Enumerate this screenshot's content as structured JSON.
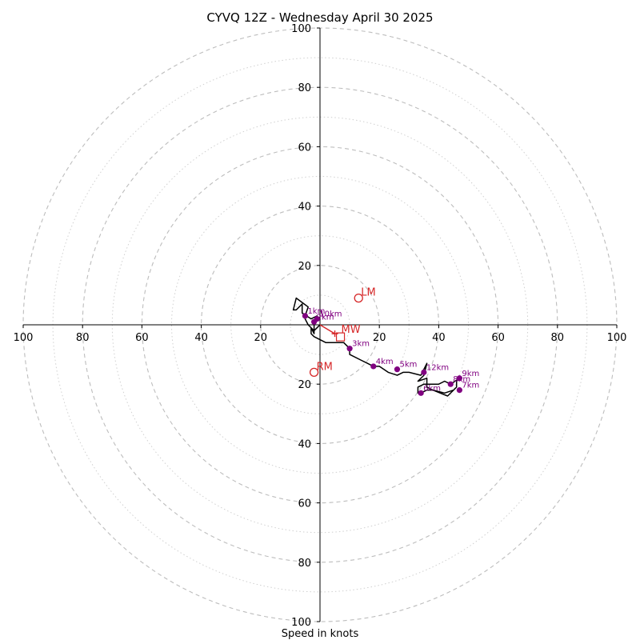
{
  "chart_data": {
    "type": "scatter",
    "title": "CYVQ 12Z - Wednesday April 30 2025",
    "xlabel": "Speed in knots",
    "ylabel": "",
    "xlim": [
      -100,
      100
    ],
    "ylim": [
      -100,
      100
    ],
    "polar_rings_major": [
      20,
      40,
      60,
      80,
      100
    ],
    "polar_rings_minor": [
      10,
      30,
      50,
      70,
      90
    ],
    "x_tick_labels": [
      "100",
      "80",
      "60",
      "40",
      "20",
      "",
      "20",
      "40",
      "60",
      "80",
      "100"
    ],
    "x_tick_values": [
      -100,
      -80,
      -60,
      -40,
      -20,
      0,
      20,
      40,
      60,
      80,
      100
    ],
    "y_tick_labels": [
      "100",
      "80",
      "60",
      "40",
      "20",
      "",
      "20",
      "40",
      "60",
      "80",
      "100"
    ],
    "y_tick_values": [
      100,
      80,
      60,
      40,
      20,
      0,
      -20,
      -40,
      -60,
      -80,
      -100
    ],
    "grid": true,
    "colors": {
      "hodograph_line": "#000000",
      "height_markers": "#800080",
      "storm_motion": "#d62728",
      "grid": "#bdbdbd"
    },
    "hodograph_trace": [
      [
        0,
        0
      ],
      [
        -1,
        -1
      ],
      [
        -2,
        -2
      ],
      [
        -4,
        0
      ],
      [
        -5,
        2
      ],
      [
        -5,
        3
      ],
      [
        -4,
        6
      ],
      [
        -8,
        9
      ],
      [
        -9,
        5
      ],
      [
        -8,
        5
      ],
      [
        -6,
        7
      ],
      [
        -6,
        6
      ],
      [
        -6,
        4
      ],
      [
        -3,
        2
      ],
      [
        -1,
        3
      ],
      [
        -2,
        1
      ],
      [
        -2,
        -2
      ],
      [
        -2,
        -3
      ],
      [
        -3,
        -1
      ],
      [
        -3,
        -2
      ],
      [
        -3,
        -3
      ],
      [
        -2,
        -4
      ],
      [
        2,
        -6
      ],
      [
        4,
        -6
      ],
      [
        8,
        -6
      ],
      [
        10,
        -8
      ],
      [
        10,
        -10
      ],
      [
        14,
        -12
      ],
      [
        16,
        -13
      ],
      [
        18,
        -14
      ],
      [
        20,
        -14
      ],
      [
        23,
        -16
      ],
      [
        26,
        -17
      ],
      [
        28,
        -16
      ],
      [
        30,
        -16
      ],
      [
        34,
        -17
      ],
      [
        36,
        -13
      ],
      [
        35,
        -17
      ],
      [
        33,
        -19
      ],
      [
        36,
        -18
      ],
      [
        36,
        -21
      ],
      [
        38,
        -22
      ],
      [
        42,
        -23
      ],
      [
        45,
        -22
      ],
      [
        46,
        -21
      ],
      [
        46,
        -19
      ],
      [
        47,
        -18
      ],
      [
        44,
        -20
      ],
      [
        42,
        -19
      ],
      [
        40,
        -20
      ],
      [
        35,
        -20
      ],
      [
        33,
        -21
      ],
      [
        33,
        -23
      ],
      [
        34,
        -23
      ],
      [
        36,
        -22
      ],
      [
        38,
        -22
      ],
      [
        43,
        -24
      ],
      [
        46,
        -21
      ]
    ],
    "height_markers": [
      {
        "label": "1km",
        "x": -5,
        "y": 3
      },
      {
        "label": "2km",
        "x": -2,
        "y": 1
      },
      {
        "label": "3km",
        "x": 10,
        "y": -8
      },
      {
        "label": "4km",
        "x": 18,
        "y": -14
      },
      {
        "label": "5km",
        "x": 26,
        "y": -15
      },
      {
        "label": "6km",
        "x": 34,
        "y": -23
      },
      {
        "label": "7km",
        "x": 47,
        "y": -22
      },
      {
        "label": "8km",
        "x": 44,
        "y": -20
      },
      {
        "label": "9km",
        "x": 47,
        "y": -18
      },
      {
        "label": "10km",
        "x": -1,
        "y": 2
      },
      {
        "label": "12km",
        "x": 35,
        "y": -16
      }
    ],
    "storm_motion": [
      {
        "label": "LM",
        "x": 13,
        "y": 9
      },
      {
        "label": "RM",
        "x": -2,
        "y": -16
      },
      {
        "label": "MW",
        "x": 5,
        "y": -3
      }
    ]
  }
}
